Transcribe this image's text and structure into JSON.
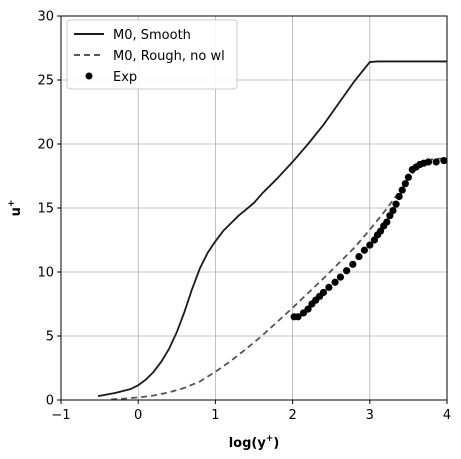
{
  "chart_data": {
    "type": "line",
    "xlabel_main": "log(y",
    "xlabel_sup": "+",
    "xlabel_close": ")",
    "ylabel_main": "u",
    "ylabel_sup": "+",
    "xlim": [
      -1,
      4
    ],
    "ylim": [
      0,
      30
    ],
    "xticks": [
      -1,
      0,
      1,
      2,
      3,
      4
    ],
    "yticks": [
      0,
      5,
      10,
      15,
      20,
      25,
      30
    ],
    "grid": true,
    "legend_position": "upper-left",
    "series": [
      {
        "name": "M0, Smooth",
        "style": "solid",
        "color": "#1a1a1a",
        "x": [
          -0.52,
          -0.3,
          -0.1,
          0.0,
          0.1,
          0.2,
          0.3,
          0.4,
          0.5,
          0.6,
          0.7,
          0.8,
          0.9,
          1.0,
          1.1,
          1.2,
          1.3,
          1.4,
          1.5,
          1.6,
          1.8,
          2.0,
          2.2,
          2.4,
          2.6,
          2.8,
          3.0,
          3.1,
          3.2,
          3.3,
          3.4,
          3.6,
          3.8,
          4.0
        ],
        "y": [
          0.3,
          0.55,
          0.85,
          1.15,
          1.6,
          2.2,
          3.0,
          4.0,
          5.3,
          6.9,
          8.7,
          10.3,
          11.5,
          12.4,
          13.2,
          13.8,
          14.4,
          14.9,
          15.4,
          16.1,
          17.3,
          18.6,
          20.0,
          21.5,
          23.2,
          24.9,
          26.4,
          26.45,
          26.45,
          26.45,
          26.45,
          26.45,
          26.45,
          26.45
        ]
      },
      {
        "name": "M0, Rough, no wl",
        "style": "dashed",
        "color": "#555555",
        "x": [
          -0.35,
          -0.2,
          0.0,
          0.2,
          0.4,
          0.6,
          0.8,
          1.0,
          1.2,
          1.4,
          1.6,
          1.8,
          2.0,
          2.2,
          2.4,
          2.6,
          2.8,
          3.0,
          3.2,
          3.4,
          3.6,
          3.8,
          4.0
        ],
        "y": [
          0.05,
          0.1,
          0.2,
          0.35,
          0.6,
          0.95,
          1.45,
          2.2,
          3.05,
          4.0,
          5.0,
          6.1,
          7.2,
          8.35,
          9.5,
          10.7,
          11.9,
          13.3,
          14.8,
          16.4,
          18.1,
          18.8,
          18.9
        ]
      },
      {
        "name": "Exp",
        "style": "markers",
        "color": "#000000",
        "x": [
          2.02,
          2.07,
          2.14,
          2.2,
          2.25,
          2.3,
          2.35,
          2.4,
          2.47,
          2.55,
          2.62,
          2.7,
          2.78,
          2.86,
          2.93,
          3.0,
          3.06,
          3.1,
          3.14,
          3.18,
          3.22,
          3.26,
          3.3,
          3.34,
          3.38,
          3.42,
          3.46,
          3.5,
          3.55,
          3.6,
          3.65,
          3.7,
          3.76,
          3.86,
          3.96
        ],
        "y": [
          6.5,
          6.5,
          6.8,
          7.1,
          7.5,
          7.8,
          8.1,
          8.4,
          8.8,
          9.2,
          9.6,
          10.1,
          10.6,
          11.2,
          11.7,
          12.1,
          12.5,
          12.9,
          13.2,
          13.6,
          13.9,
          14.4,
          14.8,
          15.3,
          15.9,
          16.4,
          16.9,
          17.4,
          18.0,
          18.2,
          18.4,
          18.5,
          18.6,
          18.6,
          18.7
        ]
      }
    ]
  }
}
